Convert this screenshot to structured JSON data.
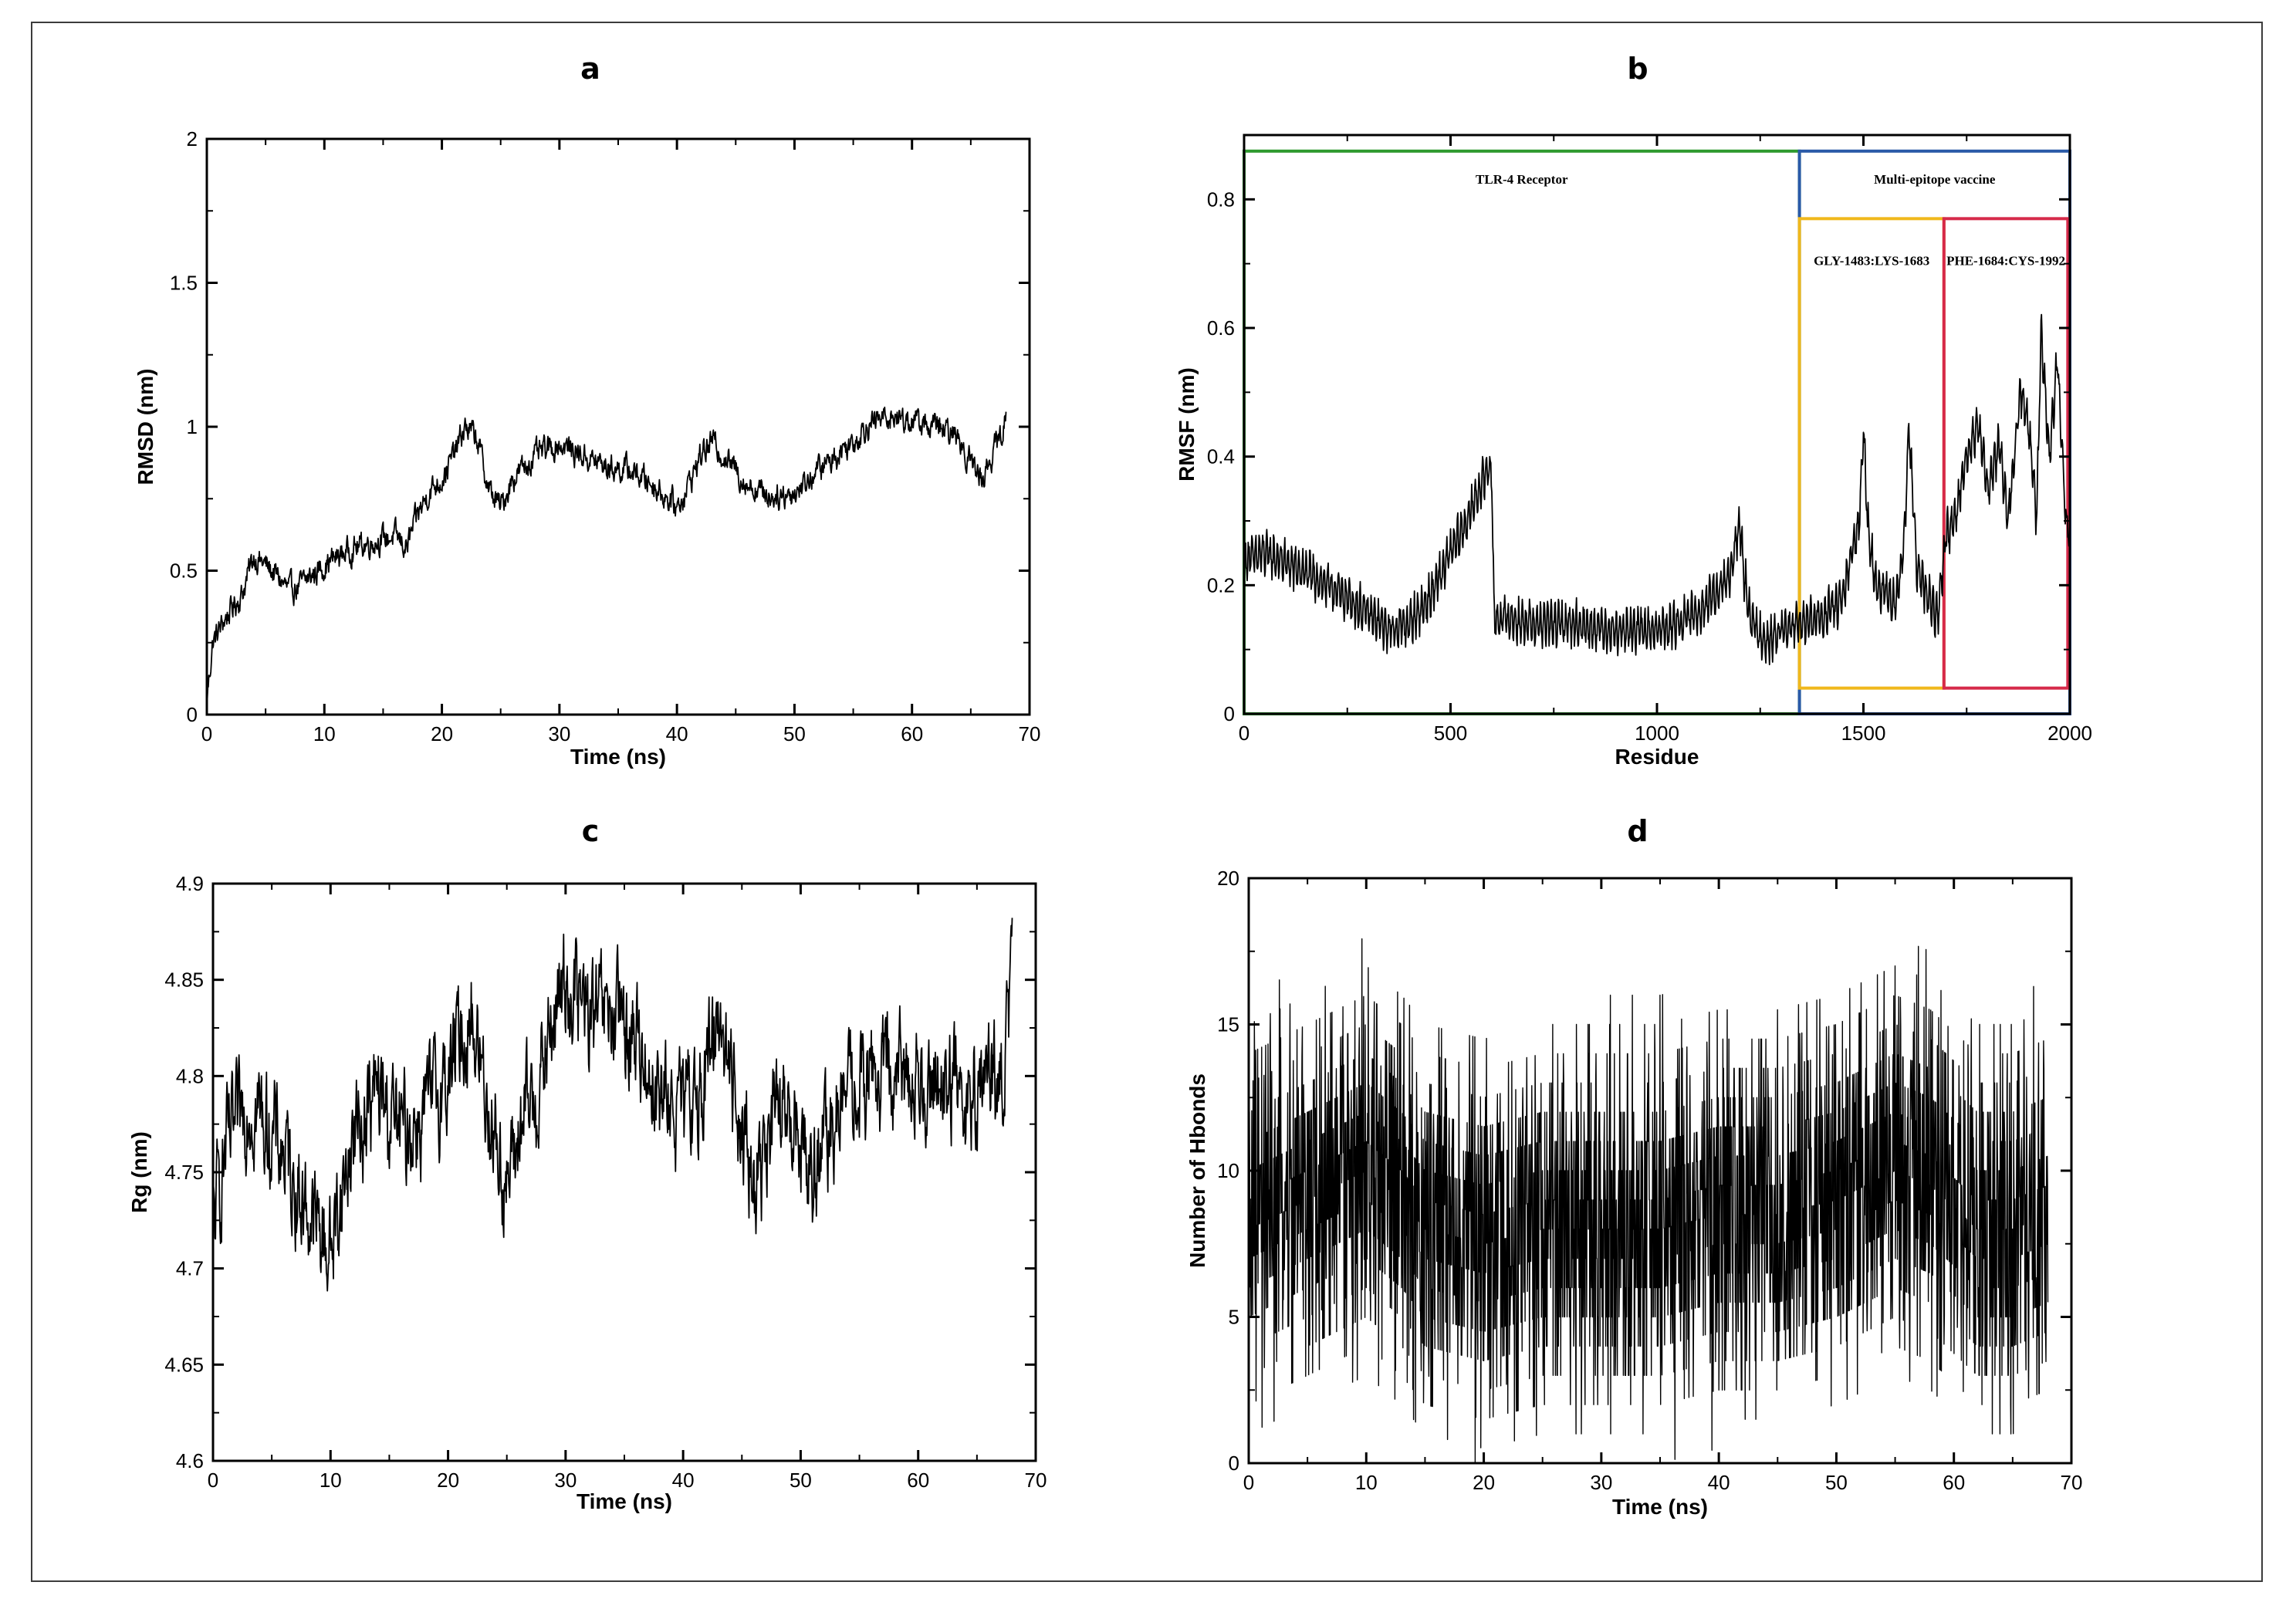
{
  "chart_data": [
    {
      "panel": "a",
      "type": "line",
      "title": "a",
      "xlabel": "Time (ns)",
      "ylabel": "RMSD (nm)",
      "xlim": [
        0,
        70
      ],
      "ylim": [
        0,
        2
      ],
      "xticks": [
        "0",
        "10",
        "20",
        "30",
        "40",
        "50",
        "60",
        "70"
      ],
      "yticks": [
        "0",
        "0.5",
        "1",
        "1.5",
        "2"
      ],
      "series": [
        {
          "name": "RMSD",
          "noise": 0.035,
          "x": [
            0,
            0.5,
            1.5,
            3,
            4,
            5,
            6,
            7,
            8,
            10,
            12,
            14,
            16,
            17,
            18,
            19,
            20,
            21,
            22,
            23,
            24,
            25,
            26,
            27,
            28,
            29,
            30,
            32,
            34,
            36,
            38,
            39,
            40,
            41,
            42,
            43,
            44,
            45,
            46,
            48,
            50,
            52,
            53,
            54,
            55,
            56,
            57,
            58,
            60,
            62,
            64,
            65,
            66,
            67,
            68
          ],
          "y": [
            0.05,
            0.25,
            0.33,
            0.42,
            0.55,
            0.52,
            0.48,
            0.43,
            0.45,
            0.52,
            0.57,
            0.6,
            0.62,
            0.58,
            0.7,
            0.78,
            0.82,
            0.9,
            1.0,
            0.96,
            0.78,
            0.72,
            0.82,
            0.86,
            0.9,
            0.92,
            0.94,
            0.9,
            0.86,
            0.85,
            0.8,
            0.76,
            0.72,
            0.8,
            0.9,
            0.95,
            0.9,
            0.85,
            0.8,
            0.76,
            0.77,
            0.85,
            0.88,
            0.92,
            0.95,
            1.0,
            1.02,
            1.04,
            1.02,
            1.0,
            0.96,
            0.88,
            0.82,
            0.92,
            1.02
          ]
        }
      ]
    },
    {
      "panel": "b",
      "type": "line",
      "title": "b",
      "xlabel": "Residue",
      "ylabel": "RMSF (nm)",
      "xlim": [
        0,
        2000
      ],
      "ylim": [
        0,
        0.9
      ],
      "xticks": [
        "0",
        "500",
        "1000",
        "1500",
        "2000"
      ],
      "yticks": [
        "0",
        "0.2",
        "0.4",
        "0.6",
        "0.8"
      ],
      "regions": [
        {
          "label": "TLR-4 Receptor",
          "x": [
            0,
            1345
          ],
          "y": [
            0,
            0.875
          ],
          "color": "#2e9a2e"
        },
        {
          "label": "Multi-epitope vaccine",
          "x": [
            1345,
            2000
          ],
          "y": [
            0,
            0.875
          ],
          "color": "#2a5aa8"
        },
        {
          "label": "GLY-1483:LYS-1683",
          "x": [
            1345,
            1695
          ],
          "y": [
            0.04,
            0.77
          ],
          "color": "#f0b81c"
        },
        {
          "label": "PHE-1684:CYS-1992",
          "x": [
            1695,
            1995
          ],
          "y": [
            0.04,
            0.77
          ],
          "color": "#d62a4a"
        }
      ],
      "series": [
        {
          "name": "RMSF",
          "noise": 0.015,
          "x": [
            0,
            50,
            150,
            250,
            350,
            400,
            450,
            500,
            540,
            570,
            590,
            600,
            605,
            700,
            800,
            900,
            1000,
            1050,
            1100,
            1150,
            1180,
            1200,
            1210,
            1230,
            1270,
            1300,
            1350,
            1400,
            1450,
            1490,
            1500,
            1510,
            1530,
            1580,
            1600,
            1610,
            1630,
            1680,
            1700,
            1720,
            1750,
            1780,
            1800,
            1830,
            1850,
            1880,
            1900,
            1920,
            1930,
            1950,
            1970,
            1990,
            2000
          ],
          "y": [
            0.24,
            0.25,
            0.22,
            0.18,
            0.13,
            0.14,
            0.18,
            0.25,
            0.3,
            0.35,
            0.38,
            0.38,
            0.15,
            0.14,
            0.14,
            0.13,
            0.13,
            0.14,
            0.16,
            0.19,
            0.22,
            0.3,
            0.22,
            0.14,
            0.11,
            0.13,
            0.14,
            0.15,
            0.18,
            0.3,
            0.45,
            0.3,
            0.2,
            0.17,
            0.28,
            0.45,
            0.22,
            0.15,
            0.28,
            0.3,
            0.4,
            0.45,
            0.35,
            0.42,
            0.3,
            0.5,
            0.45,
            0.3,
            0.6,
            0.4,
            0.55,
            0.3,
            0.28
          ]
        }
      ]
    },
    {
      "panel": "c",
      "type": "line",
      "title": "c",
      "xlabel": "Time (ns)",
      "ylabel": "Rg (nm)",
      "xlim": [
        0,
        70
      ],
      "ylim": [
        4.6,
        4.9
      ],
      "xticks": [
        "0",
        "10",
        "20",
        "30",
        "40",
        "50",
        "60",
        "70"
      ],
      "yticks": [
        "4.6",
        "4.65",
        "4.7",
        "4.75",
        "4.8",
        "4.85",
        "4.9"
      ],
      "series": [
        {
          "name": "Rg",
          "noise": 0.022,
          "x": [
            0,
            1,
            2,
            3,
            4,
            6,
            8,
            9,
            10,
            11,
            12,
            14,
            16,
            18,
            20,
            21,
            22,
            23,
            24,
            25,
            26,
            28,
            29,
            30,
            31,
            32,
            34,
            36,
            38,
            40,
            42,
            43,
            44,
            45,
            46,
            47,
            48,
            50,
            51,
            52,
            53,
            54,
            56,
            58,
            60,
            62,
            64,
            66,
            67,
            68
          ],
          "y": [
            4.72,
            4.76,
            4.77,
            4.79,
            4.78,
            4.76,
            4.73,
            4.72,
            4.71,
            4.74,
            4.77,
            4.79,
            4.77,
            4.78,
            4.8,
            4.82,
            4.83,
            4.8,
            4.77,
            4.74,
            4.77,
            4.8,
            4.83,
            4.85,
            4.84,
            4.83,
            4.83,
            4.82,
            4.79,
            4.78,
            4.8,
            4.84,
            4.8,
            4.78,
            4.74,
            4.76,
            4.78,
            4.77,
            4.75,
            4.76,
            4.78,
            4.79,
            4.8,
            4.8,
            4.8,
            4.8,
            4.79,
            4.8,
            4.79,
            4.85
          ]
        }
      ]
    },
    {
      "panel": "d",
      "type": "line",
      "title": "d",
      "xlabel": "Time (ns)",
      "ylabel": "Number of Hbonds",
      "xlim": [
        0,
        70
      ],
      "ylim": [
        0,
        20
      ],
      "xticks": [
        "0",
        "10",
        "20",
        "30",
        "40",
        "50",
        "60",
        "70"
      ],
      "yticks": [
        "0",
        "5",
        "10",
        "15",
        "20"
      ],
      "series": [
        {
          "name": "Hbonds",
          "noise": 5.5,
          "x": [
            0,
            5,
            10,
            13,
            15,
            20,
            25,
            30,
            35,
            40,
            45,
            50,
            55,
            58,
            62,
            65,
            68
          ],
          "y": [
            8,
            9,
            10,
            9,
            8,
            7.5,
            8,
            8,
            8,
            8.5,
            8.5,
            9,
            10,
            9.5,
            8,
            8,
            8.5
          ]
        }
      ]
    }
  ]
}
